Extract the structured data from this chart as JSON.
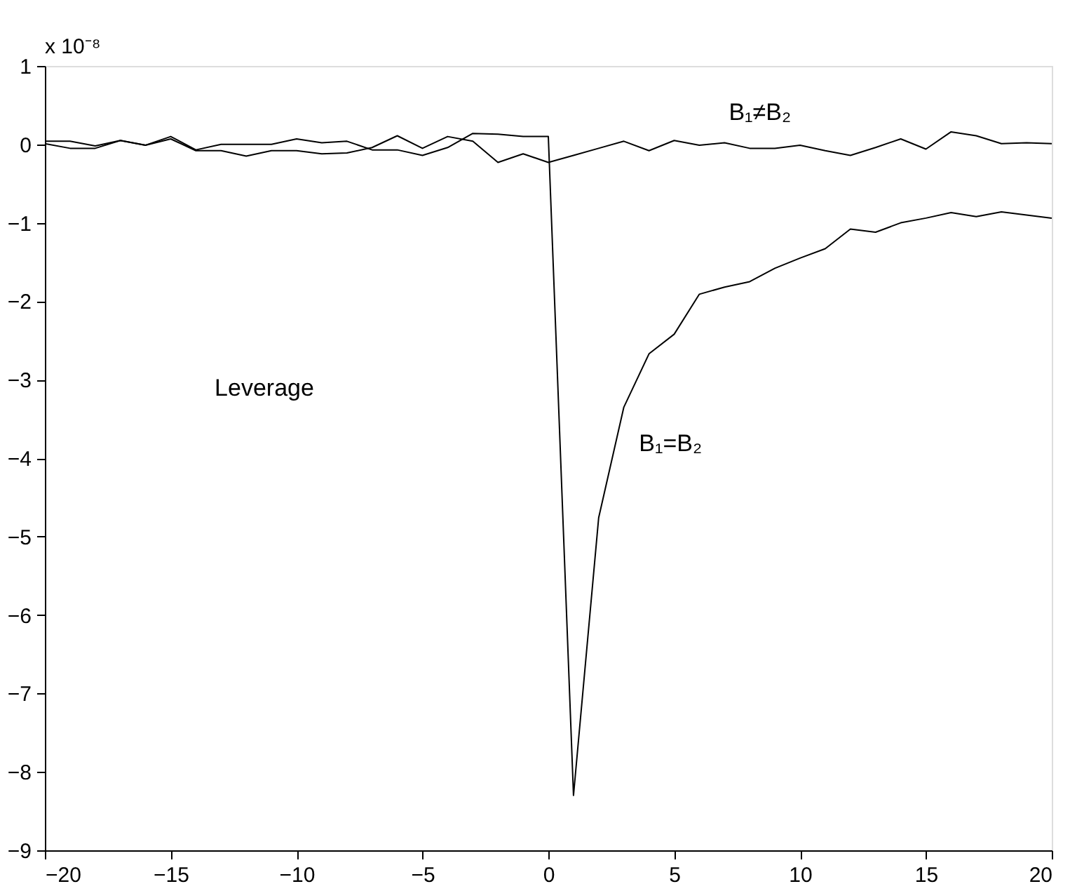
{
  "chart_data": {
    "type": "line",
    "x": [
      -20,
      -19,
      -18,
      -17,
      -16,
      -15,
      -14,
      -13,
      -12,
      -11,
      -10,
      -9,
      -8,
      -7,
      -6,
      -5,
      -4,
      -3,
      -2,
      -1,
      0,
      1,
      2,
      3,
      4,
      5,
      6,
      7,
      8,
      9,
      10,
      11,
      12,
      13,
      14,
      15,
      16,
      17,
      18,
      19,
      20
    ],
    "series": [
      {
        "color": "#000000",
        "values": [
          0.04,
          0.04,
          -0.02,
          0.05,
          -0.01,
          0.1,
          -0.07,
          0,
          0,
          0,
          0.07,
          0.02,
          0.04,
          -0.07,
          -0.07,
          -0.14,
          -0.04,
          0.14,
          0.13,
          0.1,
          0.1,
          -8.3,
          -4.76,
          -3.35,
          -2.67,
          -2.42,
          -1.91,
          -1.82,
          -1.75,
          -1.58,
          -1.45,
          -1.33,
          -1.08,
          -1.12,
          -1.0,
          -0.94,
          -0.87,
          -0.92,
          -0.86,
          -0.9,
          -0.94
        ]
      },
      {
        "color": "#000000",
        "values": [
          0.01,
          -0.05,
          -0.05,
          0.05,
          -0.01,
          0.07,
          -0.08,
          -0.08,
          -0.15,
          -0.08,
          -0.08,
          -0.12,
          -0.11,
          -0.04,
          0.11,
          -0.05,
          0.1,
          0.04,
          -0.23,
          -0.12,
          -0.23,
          -0.14,
          -0.05,
          0.04,
          -0.08,
          0.05,
          -0.01,
          0.02,
          -0.05,
          -0.05,
          -0.01,
          -0.08,
          -0.14,
          -0.04,
          0.07,
          -0.06,
          0.16,
          0.11,
          0.01,
          0.02,
          0.01
        ]
      }
    ],
    "xlim": [
      -20,
      20
    ],
    "xticks": [
      -20,
      -15,
      -10,
      -5,
      0,
      5,
      10,
      15,
      20
    ],
    "ylim": [
      -9,
      1
    ],
    "yticks": [
      -9,
      -8,
      -7,
      -6,
      -5,
      -4,
      -3,
      -2,
      -1,
      0,
      1
    ],
    "grid": false,
    "marker": "none",
    "line_style": "solid",
    "annotations": [
      "x 10⁻⁸",
      "Leverage",
      "B₁≠B₂",
      "B₁=B₂"
    ]
  }
}
